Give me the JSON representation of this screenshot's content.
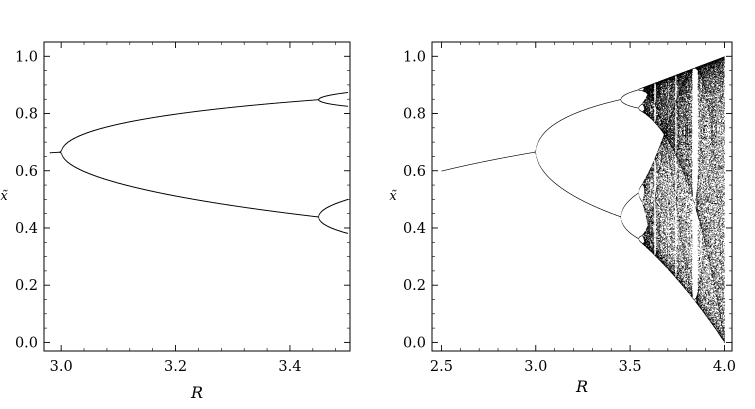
{
  "colors": {
    "background": "#ffffff",
    "ink": "#000000"
  },
  "chart_data": [
    {
      "type": "scatter",
      "description_kind": "bifurcation-diagram-zoom",
      "xlabel": "R",
      "ylabel": "x̃",
      "xlim": [
        2.97,
        3.505
      ],
      "ylim": [
        -0.03,
        1.05
      ],
      "xticks": [
        {
          "value": 3.0,
          "label": "3.0"
        },
        {
          "value": 3.2,
          "label": "3.2"
        },
        {
          "value": 3.4,
          "label": "3.4"
        }
      ],
      "yticks": [
        {
          "value": 0.0,
          "label": "0.0"
        },
        {
          "value": 0.2,
          "label": "0.2"
        },
        {
          "value": 0.4,
          "label": "0.4"
        },
        {
          "value": 0.6,
          "label": "0.6"
        },
        {
          "value": 0.8,
          "label": "0.8"
        },
        {
          "value": 1.0,
          "label": "1.0"
        }
      ],
      "grid": false,
      "r_range_plotted": [
        2.98,
        3.5
      ]
    },
    {
      "type": "scatter",
      "description_kind": "bifurcation-diagram-full",
      "xlabel": "R",
      "ylabel": "x̃",
      "xlim": [
        2.45,
        4.04
      ],
      "ylim": [
        -0.03,
        1.05
      ],
      "xticks": [
        {
          "value": 2.5,
          "label": "2.5"
        },
        {
          "value": 3.0,
          "label": "3.0"
        },
        {
          "value": 3.5,
          "label": "3.5"
        },
        {
          "value": 4.0,
          "label": "4.0"
        }
      ],
      "yticks": [
        {
          "value": 0.0,
          "label": "0.0"
        },
        {
          "value": 0.2,
          "label": "0.2"
        },
        {
          "value": 0.4,
          "label": "0.4"
        },
        {
          "value": 0.6,
          "label": "0.6"
        },
        {
          "value": 0.8,
          "label": "0.8"
        },
        {
          "value": 1.0,
          "label": "1.0"
        }
      ],
      "grid": false,
      "r_range_plotted": [
        2.5,
        4.0
      ]
    }
  ]
}
